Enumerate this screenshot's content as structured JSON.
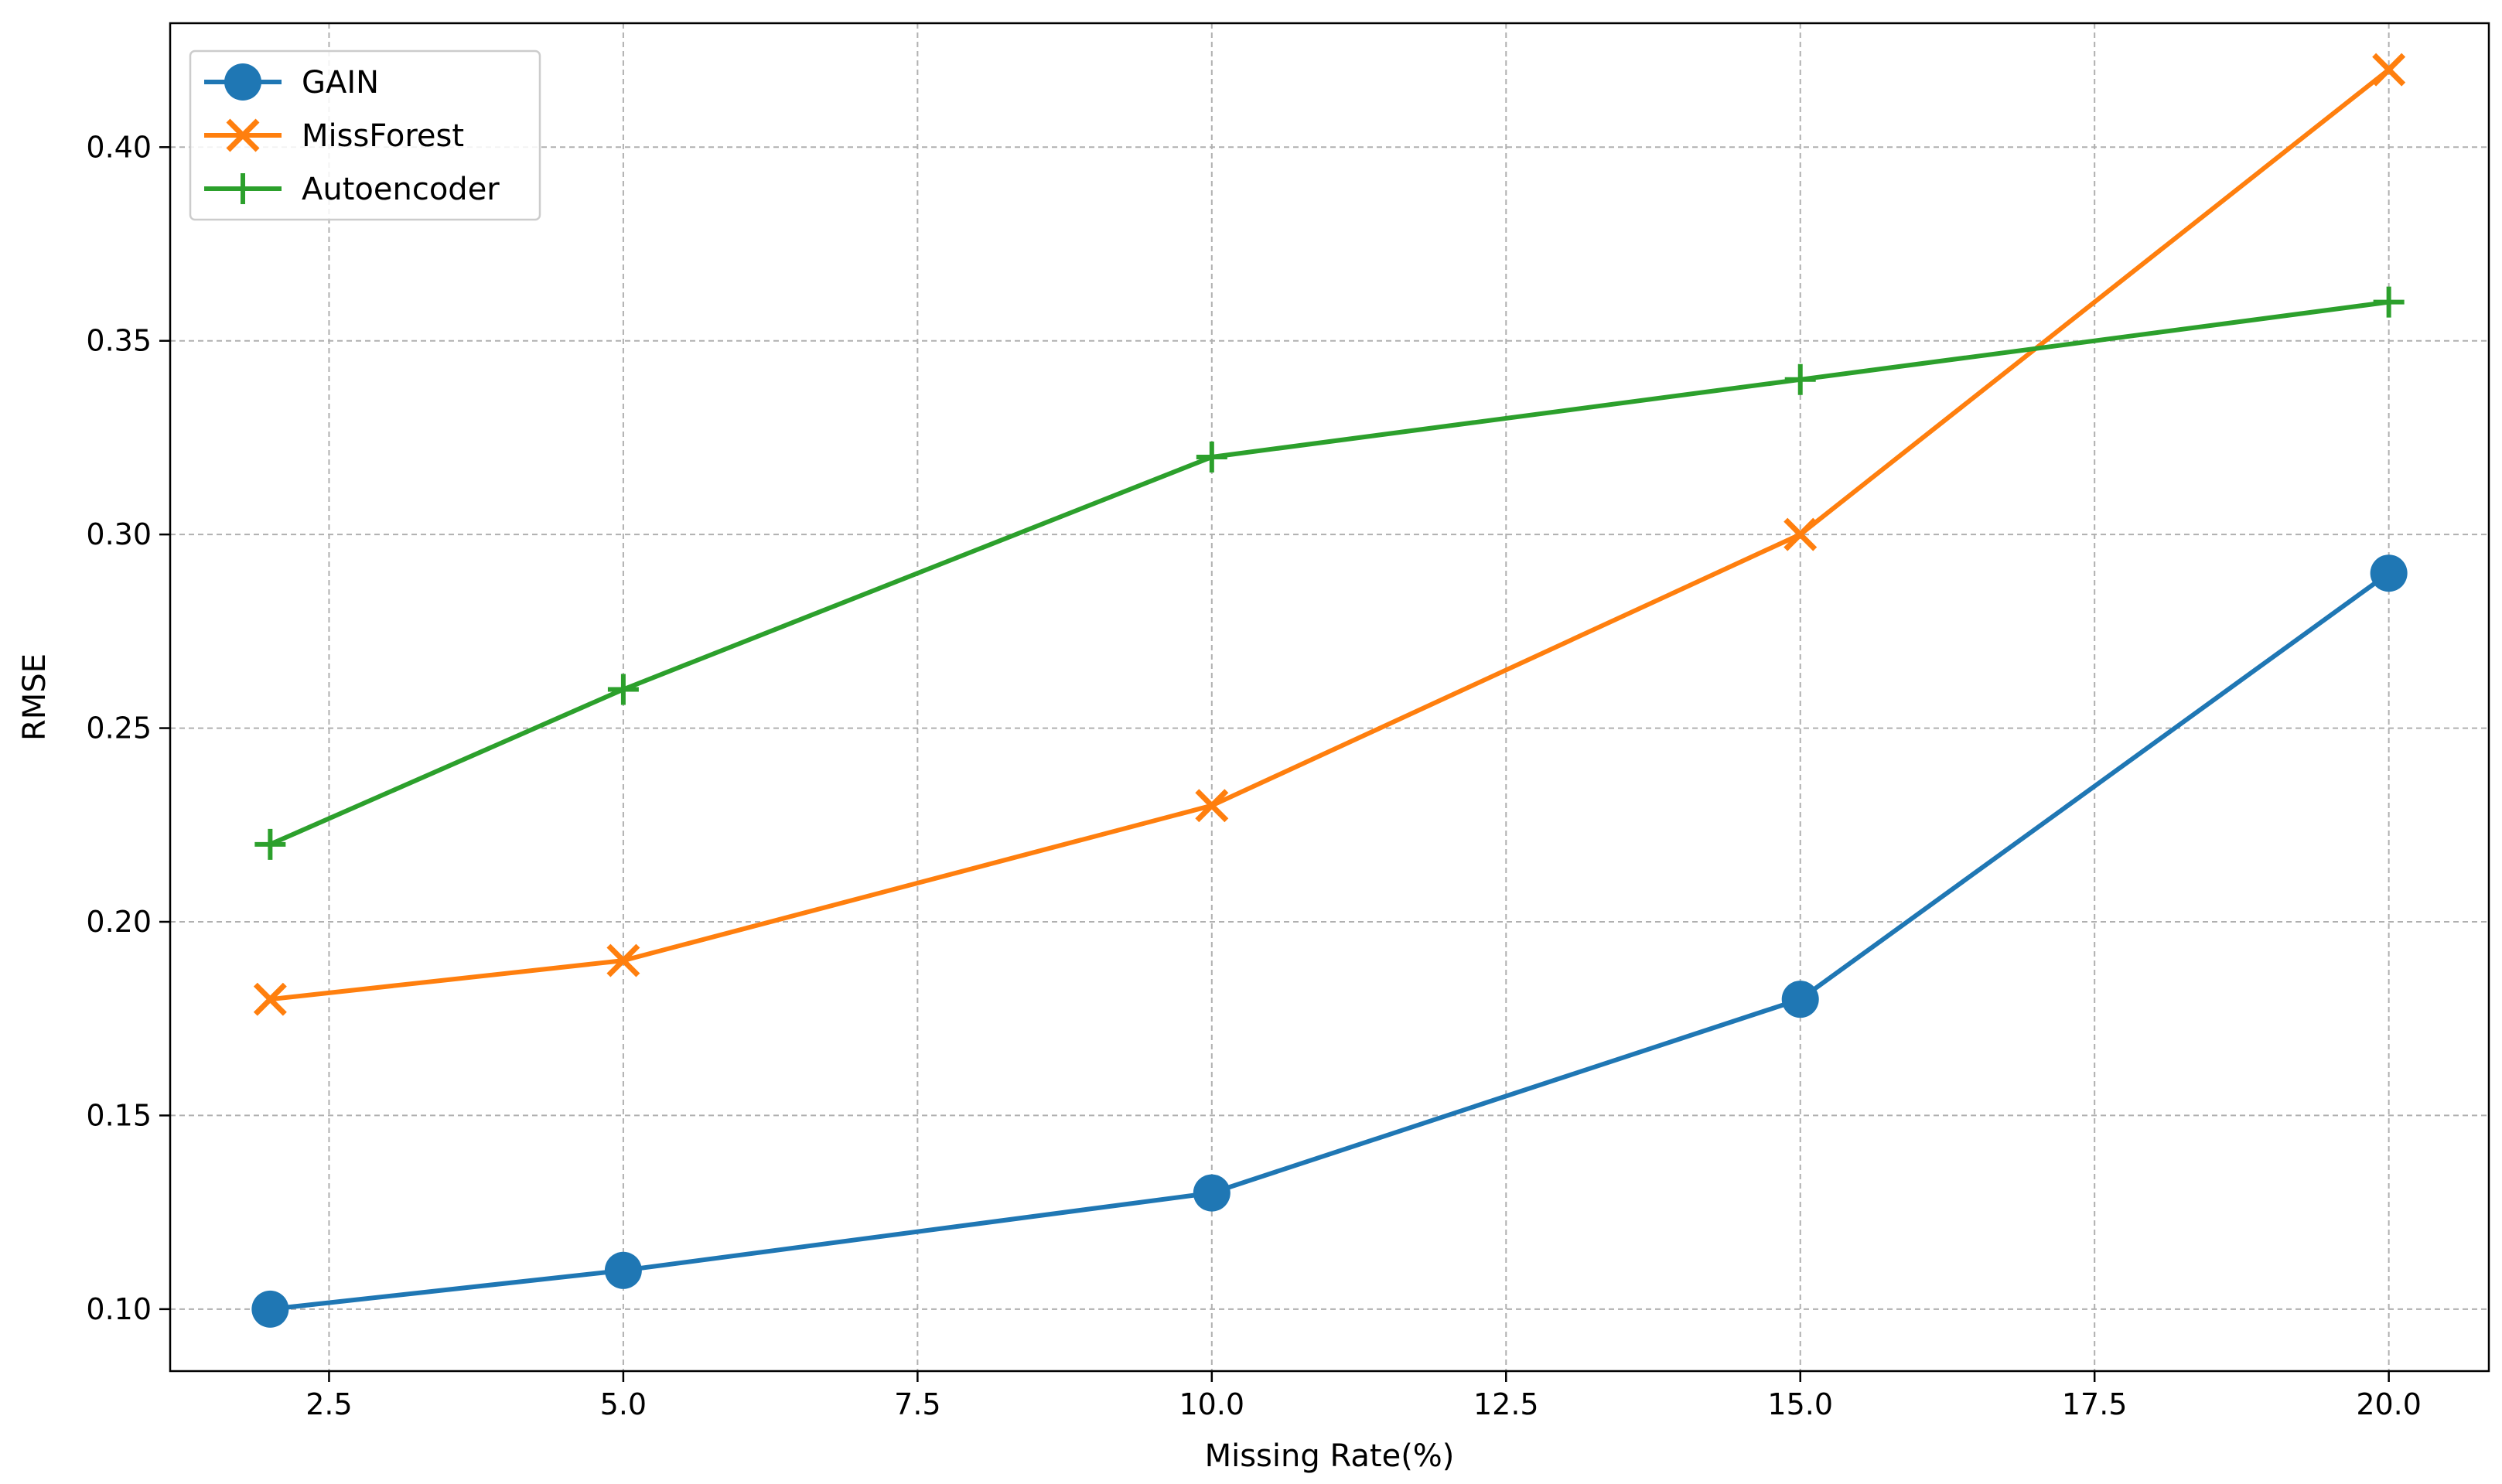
{
  "chart_data": {
    "type": "line",
    "xlabel": "Missing Rate(%)",
    "ylabel": "RMSE",
    "xlim": [
      1.15,
      20.85
    ],
    "ylim": [
      0.084,
      0.432
    ],
    "xticks": [
      2.5,
      5.0,
      7.5,
      10.0,
      12.5,
      15.0,
      17.5,
      20.0
    ],
    "xtick_labels": [
      "2.5",
      "5.0",
      "7.5",
      "10.0",
      "12.5",
      "15.0",
      "17.5",
      "20.0"
    ],
    "yticks": [
      0.1,
      0.15,
      0.2,
      0.25,
      0.3,
      0.35,
      0.4
    ],
    "ytick_labels": [
      "0.10",
      "0.15",
      "0.20",
      "0.25",
      "0.30",
      "0.35",
      "0.40"
    ],
    "grid": true,
    "legend_position": "top-left",
    "x": [
      2,
      5,
      10,
      15,
      20
    ],
    "series": [
      {
        "name": "GAIN",
        "values": [
          0.1,
          0.11,
          0.13,
          0.18,
          0.29
        ],
        "color": "#1f77b4",
        "marker": "circle"
      },
      {
        "name": "MissForest",
        "values": [
          0.18,
          0.19,
          0.23,
          0.3,
          0.42
        ],
        "color": "#ff7f0e",
        "marker": "x"
      },
      {
        "name": "Autoencoder",
        "values": [
          0.22,
          0.26,
          0.32,
          0.34,
          0.36
        ],
        "color": "#2ca02c",
        "marker": "plus"
      }
    ]
  }
}
